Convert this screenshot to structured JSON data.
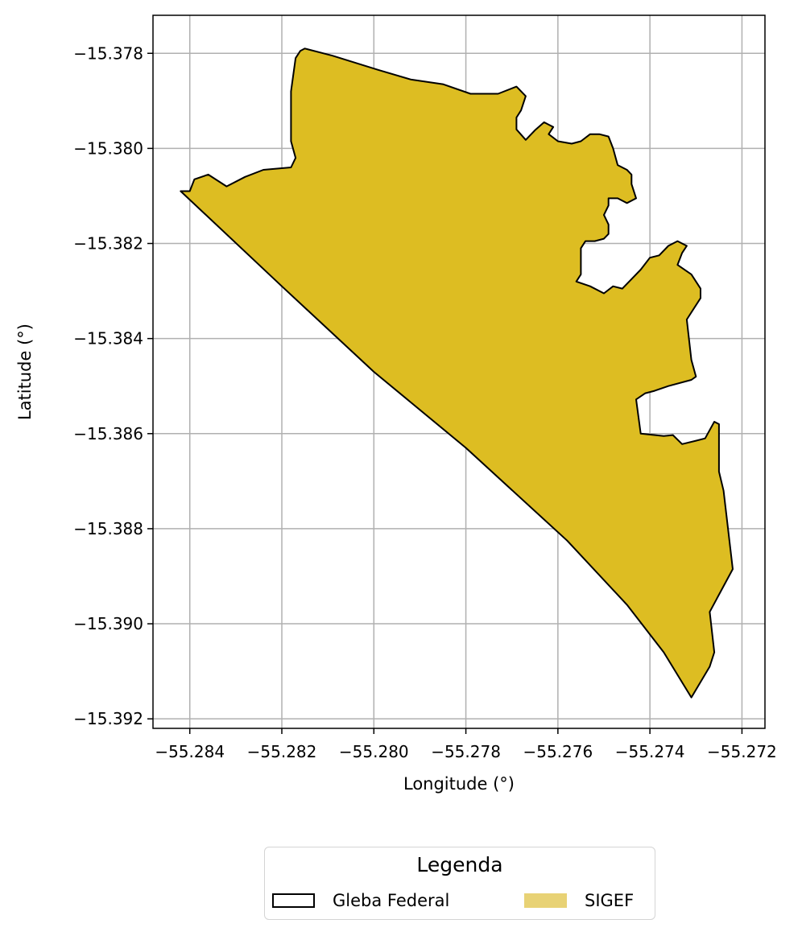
{
  "chart_data": {
    "type": "map",
    "xlabel": "Longitude (°)",
    "ylabel": "Latitude (°)",
    "xlim": [
      -55.2848,
      -55.2715
    ],
    "ylim": [
      -15.3922,
      -15.3772
    ],
    "grid": true,
    "xticks": [
      -55.284,
      -55.282,
      -55.28,
      -55.278,
      -55.276,
      -55.274,
      -55.272
    ],
    "xtick_labels": [
      "−55.284",
      "−55.282",
      "−55.280",
      "−55.278",
      "−55.276",
      "−55.274",
      "−55.272"
    ],
    "yticks": [
      -15.378,
      -15.38,
      -15.382,
      -15.384,
      -15.386,
      -15.388,
      -15.39,
      -15.392
    ],
    "ytick_labels": [
      "−15.378",
      "−15.380",
      "−15.382",
      "−15.384",
      "−15.386",
      "−15.388",
      "−15.390",
      "−15.392"
    ],
    "fill_color": "#ddbd22",
    "edge_color": "#000000",
    "polygon": [
      [
        -55.2842,
        -15.3809
      ],
      [
        -55.284,
        -15.3809
      ],
      [
        -55.2839,
        -15.38065
      ],
      [
        -55.2836,
        -15.38055
      ],
      [
        -55.2832,
        -15.3808
      ],
      [
        -55.2828,
        -15.3806
      ],
      [
        -55.2824,
        -15.38045
      ],
      [
        -55.2818,
        -15.3804
      ],
      [
        -55.2817,
        -15.3802
      ],
      [
        -55.2818,
        -15.37985
      ],
      [
        -55.2818,
        -15.3794
      ],
      [
        -55.2818,
        -15.3788
      ],
      [
        -55.2817,
        -15.3781
      ],
      [
        -55.2816,
        -15.37795
      ],
      [
        -55.2815,
        -15.3779
      ],
      [
        -55.2809,
        -15.37805
      ],
      [
        -55.2799,
        -15.37835
      ],
      [
        -55.2792,
        -15.37855
      ],
      [
        -55.2785,
        -15.37865
      ],
      [
        -55.2779,
        -15.37885
      ],
      [
        -55.2773,
        -15.37885
      ],
      [
        -55.2769,
        -15.3787
      ],
      [
        -55.2767,
        -15.3789
      ],
      [
        -55.2768,
        -15.3792
      ],
      [
        -55.2769,
        -15.37935
      ],
      [
        -55.2769,
        -15.3796
      ],
      [
        -55.2767,
        -15.37982
      ],
      [
        -55.2765,
        -15.37962
      ],
      [
        -55.2763,
        -15.37945
      ],
      [
        -55.2762,
        -15.3795
      ],
      [
        -55.2761,
        -15.37955
      ],
      [
        -55.2762,
        -15.3797
      ],
      [
        -55.276,
        -15.37985
      ],
      [
        -55.2757,
        -15.3799
      ],
      [
        -55.2755,
        -15.37985
      ],
      [
        -55.2753,
        -15.3797
      ],
      [
        -55.2751,
        -15.3797
      ],
      [
        -55.2749,
        -15.37975
      ],
      [
        -55.2748,
        -15.38
      ],
      [
        -55.2747,
        -15.38035
      ],
      [
        -55.2745,
        -15.38045
      ],
      [
        -55.2744,
        -15.38055
      ],
      [
        -55.2744,
        -15.38075
      ],
      [
        -55.2743,
        -15.38105
      ],
      [
        -55.2745,
        -15.38115
      ],
      [
        -55.2746,
        -15.3811
      ],
      [
        -55.2747,
        -15.38105
      ],
      [
        -55.2749,
        -15.38105
      ],
      [
        -55.2749,
        -15.3812
      ],
      [
        -55.275,
        -15.3814
      ],
      [
        -55.2749,
        -15.3816
      ],
      [
        -55.2749,
        -15.3818
      ],
      [
        -55.275,
        -15.3819
      ],
      [
        -55.2752,
        -15.38195
      ],
      [
        -55.2754,
        -15.38195
      ],
      [
        -55.2755,
        -15.3821
      ],
      [
        -55.2755,
        -15.3824
      ],
      [
        -55.2755,
        -15.38265
      ],
      [
        -55.2756,
        -15.3828
      ],
      [
        -55.2753,
        -15.3829
      ],
      [
        -55.275,
        -15.38305
      ],
      [
        -55.2748,
        -15.3829
      ],
      [
        -55.2746,
        -15.38295
      ],
      [
        -55.2744,
        -15.38275
      ],
      [
        -55.2742,
        -15.38255
      ],
      [
        -55.274,
        -15.3823
      ],
      [
        -55.2738,
        -15.38225
      ],
      [
        -55.2736,
        -15.38205
      ],
      [
        -55.2734,
        -15.38195
      ],
      [
        -55.2732,
        -15.38205
      ],
      [
        -55.2733,
        -15.3822
      ],
      [
        -55.2734,
        -15.38245
      ],
      [
        -55.2731,
        -15.38265
      ],
      [
        -55.2729,
        -15.38295
      ],
      [
        -55.2729,
        -15.38315
      ],
      [
        -55.2732,
        -15.3836
      ],
      [
        -55.2731,
        -15.38445
      ],
      [
        -55.273,
        -15.3848
      ],
      [
        -55.2731,
        -15.38487
      ],
      [
        -55.2736,
        -15.385
      ],
      [
        -55.2739,
        -15.3851
      ],
      [
        -55.2741,
        -15.38515
      ],
      [
        -55.2743,
        -15.38528
      ],
      [
        -55.2742,
        -15.386
      ],
      [
        -55.2737,
        -15.38605
      ],
      [
        -55.2735,
        -15.38603
      ],
      [
        -55.2733,
        -15.38622
      ],
      [
        -55.273,
        -15.38615
      ],
      [
        -55.2728,
        -15.3861
      ],
      [
        -55.2726,
        -15.38575
      ],
      [
        -55.2725,
        -15.3858
      ],
      [
        -55.2725,
        -15.3868
      ],
      [
        -55.2724,
        -15.3872
      ],
      [
        -55.2722,
        -15.38885
      ],
      [
        -55.2727,
        -15.38975
      ],
      [
        -55.2726,
        -15.3906
      ],
      [
        -55.2727,
        -15.3909
      ],
      [
        -55.2731,
        -15.39155
      ],
      [
        -55.2737,
        -15.3906
      ],
      [
        -55.2745,
        -15.3896
      ],
      [
        -55.2758,
        -15.38825
      ],
      [
        -55.278,
        -15.3863
      ],
      [
        -55.28,
        -15.3847
      ],
      [
        -55.282,
        -15.3829
      ],
      [
        -55.2842,
        -15.3809
      ]
    ]
  },
  "legend": {
    "title": "Legenda",
    "items": [
      {
        "label": "Gleba Federal",
        "style": "outline",
        "color": "#000000"
      },
      {
        "label": "SIGEF",
        "style": "fill",
        "color": "#e8d275"
      }
    ]
  }
}
